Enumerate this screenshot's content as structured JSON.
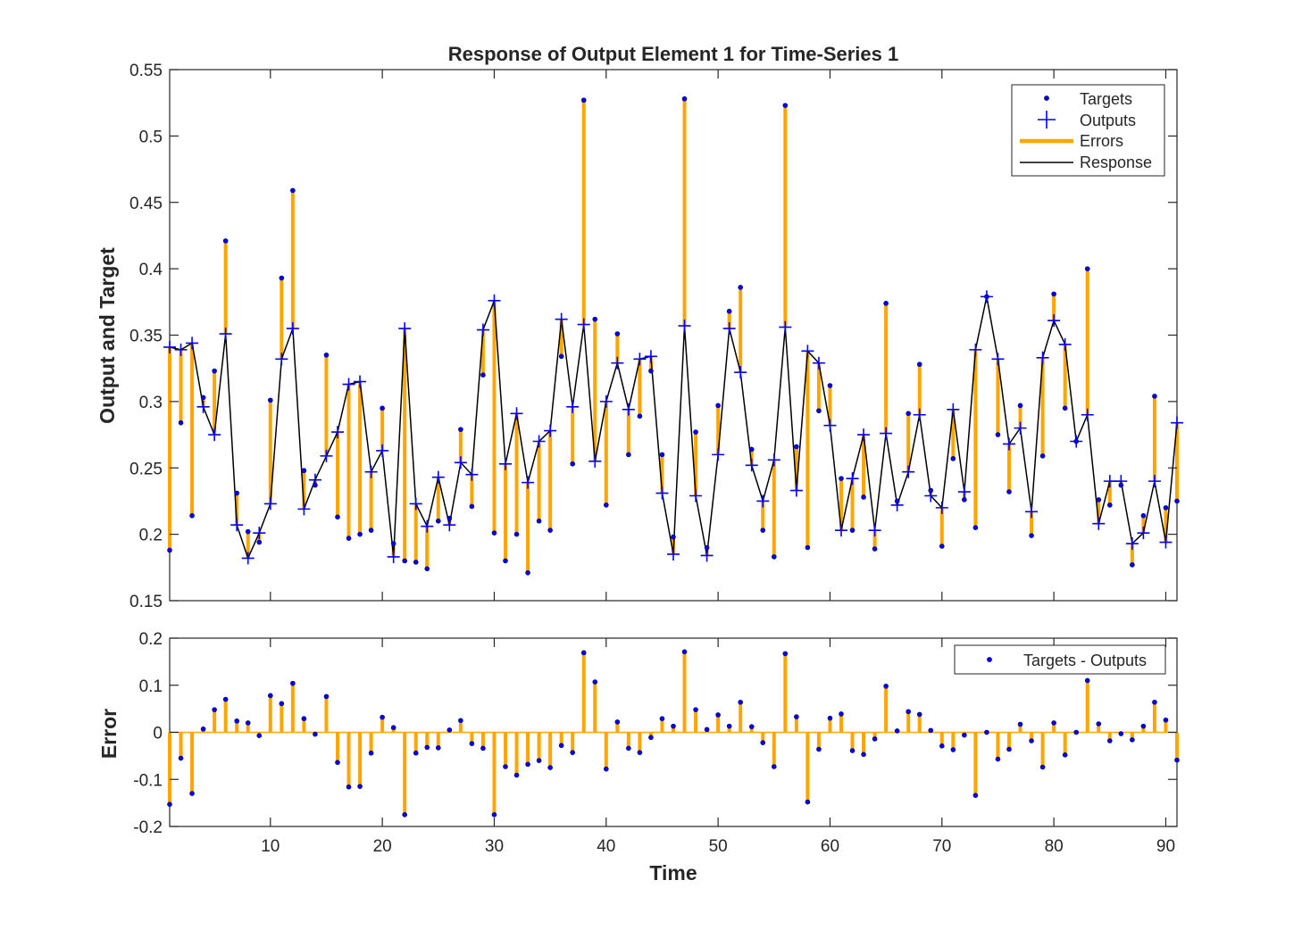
{
  "chart_data": [
    {
      "type": "line",
      "title": "Response of Output Element 1 for Time-Series 1",
      "xlabel": "",
      "ylabel": "Output and Target",
      "xlim": [
        1,
        91
      ],
      "ylim": [
        0.15,
        0.55
      ],
      "yticks": [
        "0.15",
        "0.2",
        "0.25",
        "0.3",
        "0.35",
        "0.4",
        "0.45",
        "0.5",
        "0.55"
      ],
      "xticks": [
        10,
        20,
        30,
        40,
        50,
        60,
        70,
        80,
        90
      ],
      "grid": false,
      "legend_position": "top-right",
      "colors": {
        "targets": "#0000ff",
        "outputs": "#0000ff",
        "errors": "#ffa500",
        "response": "#000000"
      },
      "legend": [
        "Targets",
        "Outputs",
        "Errors",
        "Response"
      ],
      "x": [
        1,
        2,
        3,
        4,
        5,
        6,
        7,
        8,
        9,
        10,
        11,
        12,
        13,
        14,
        15,
        16,
        17,
        18,
        19,
        20,
        21,
        22,
        23,
        24,
        25,
        26,
        27,
        28,
        29,
        30,
        31,
        32,
        33,
        34,
        35,
        36,
        37,
        38,
        39,
        40,
        41,
        42,
        43,
        44,
        45,
        46,
        47,
        48,
        49,
        50,
        51,
        52,
        53,
        54,
        55,
        56,
        57,
        58,
        59,
        60,
        61,
        62,
        63,
        64,
        65,
        66,
        67,
        68,
        69,
        70,
        71,
        72,
        73,
        74,
        75,
        76,
        77,
        78,
        79,
        80,
        81,
        82,
        83,
        84,
        85,
        86,
        87,
        88,
        89,
        90,
        91
      ],
      "series": [
        {
          "name": "Targets",
          "values": [
            0.188,
            0.284,
            0.214,
            0.303,
            0.323,
            0.421,
            0.231,
            0.202,
            0.194,
            0.301,
            0.393,
            0.459,
            0.248,
            0.237,
            0.335,
            0.213,
            0.197,
            0.2,
            0.203,
            0.295,
            0.193,
            0.18,
            0.179,
            0.174,
            0.21,
            0.212,
            0.279,
            0.221,
            0.32,
            0.201,
            0.18,
            0.2,
            0.171,
            0.21,
            0.203,
            0.334,
            0.253,
            0.527,
            0.362,
            0.222,
            0.351,
            0.26,
            0.289,
            0.323,
            0.26,
            0.198,
            0.528,
            0.277,
            0.19,
            0.297,
            0.368,
            0.386,
            0.264,
            0.203,
            0.183,
            0.523,
            0.266,
            0.19,
            0.293,
            0.312,
            0.242,
            0.203,
            0.228,
            0.189,
            0.374,
            0.225,
            0.291,
            0.328,
            0.233,
            0.191,
            0.257,
            0.226,
            0.205,
            0.379,
            0.275,
            0.232,
            0.297,
            0.199,
            0.259,
            0.381,
            0.295,
            0.27,
            0.4,
            0.226,
            0.222,
            0.237,
            0.177,
            0.214,
            0.304,
            0.22,
            0.225
          ]
        },
        {
          "name": "Outputs",
          "values": [
            0.341,
            0.339,
            0.344,
            0.296,
            0.275,
            0.351,
            0.207,
            0.182,
            0.201,
            0.223,
            0.332,
            0.355,
            0.219,
            0.241,
            0.259,
            0.277,
            0.313,
            0.315,
            0.247,
            0.263,
            0.183,
            0.355,
            0.223,
            0.206,
            0.243,
            0.207,
            0.254,
            0.245,
            0.354,
            0.376,
            0.253,
            0.291,
            0.239,
            0.27,
            0.278,
            0.362,
            0.296,
            0.358,
            0.255,
            0.3,
            0.329,
            0.294,
            0.332,
            0.334,
            0.231,
            0.185,
            0.357,
            0.229,
            0.184,
            0.26,
            0.355,
            0.322,
            0.252,
            0.225,
            0.256,
            0.356,
            0.233,
            0.338,
            0.329,
            0.282,
            0.203,
            0.242,
            0.275,
            0.203,
            0.276,
            0.222,
            0.247,
            0.29,
            0.229,
            0.22,
            0.294,
            0.232,
            0.339,
            0.379,
            0.332,
            0.268,
            0.28,
            0.217,
            0.333,
            0.361,
            0.343,
            0.27,
            0.29,
            0.208,
            0.24,
            0.24,
            0.193,
            0.201,
            0.24,
            0.194,
            0.284
          ]
        }
      ]
    },
    {
      "type": "bar",
      "title": "",
      "xlabel": "Time",
      "ylabel": "Error",
      "xlim": [
        1,
        91
      ],
      "ylim": [
        -0.2,
        0.2
      ],
      "yticks": [
        "-0.2",
        "-0.1",
        "0",
        "0.1",
        "0.2"
      ],
      "xticks": [
        "10",
        "20",
        "30",
        "40",
        "50",
        "60",
        "70",
        "80",
        "90"
      ],
      "grid": false,
      "legend_position": "top-right",
      "colors": {
        "points": "#0000ff",
        "bars": "#ffa500"
      },
      "legend": [
        "Targets - Outputs"
      ],
      "series": [
        {
          "name": "Targets - Outputs",
          "values": [
            -0.153,
            -0.055,
            -0.13,
            0.007,
            0.048,
            0.07,
            0.024,
            0.02,
            -0.007,
            0.078,
            0.061,
            0.104,
            0.029,
            -0.004,
            0.076,
            -0.064,
            -0.116,
            -0.115,
            -0.044,
            0.032,
            0.01,
            -0.175,
            -0.044,
            -0.032,
            -0.033,
            0.005,
            0.025,
            -0.024,
            -0.034,
            -0.175,
            -0.073,
            -0.091,
            -0.068,
            -0.06,
            -0.075,
            -0.028,
            -0.043,
            0.169,
            0.107,
            -0.078,
            0.022,
            -0.034,
            -0.043,
            -0.011,
            0.029,
            0.013,
            0.171,
            0.048,
            0.006,
            0.037,
            0.013,
            0.064,
            0.012,
            -0.022,
            -0.073,
            0.167,
            0.033,
            -0.148,
            -0.036,
            0.03,
            0.039,
            -0.039,
            -0.047,
            -0.014,
            0.098,
            0.003,
            0.044,
            0.038,
            0.004,
            -0.029,
            -0.037,
            -0.006,
            -0.134,
            0.0,
            -0.057,
            -0.036,
            0.017,
            -0.018,
            -0.074,
            0.02,
            -0.048,
            0.0,
            0.11,
            0.018,
            -0.018,
            -0.003,
            -0.016,
            0.013,
            0.064,
            0.026,
            -0.059
          ]
        }
      ]
    }
  ]
}
